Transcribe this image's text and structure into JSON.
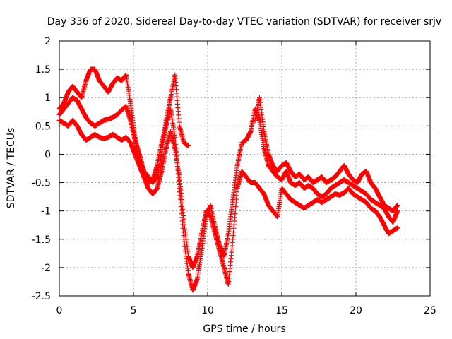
{
  "chart_data": {
    "type": "scatter",
    "title": "Day 336 of 2020, Sidereal Day-to-day VTEC variation (SDTVAR) for receiver srjv",
    "xlabel": "GPS time / hours",
    "ylabel": "SDTVAR / TECUs",
    "xlim": [
      0,
      25
    ],
    "ylim": [
      -2.5,
      2
    ],
    "xticks": [
      0,
      5,
      10,
      15,
      20,
      25
    ],
    "yticks": [
      -2.5,
      -2,
      -1.5,
      -1,
      -0.5,
      0,
      0.5,
      1,
      1.5,
      2
    ],
    "xtick_labels": [
      "0",
      "5",
      "10",
      "15",
      "20",
      "25"
    ],
    "ytick_labels": [
      "-2.5",
      "-2",
      "-1.5",
      "-1",
      "-0.5",
      "0",
      "0.5",
      "1",
      "1.5",
      "2"
    ],
    "grid": true,
    "marker": "plus",
    "color": "#ff0000",
    "series": [
      {
        "x": [
          0.0,
          0.3,
          0.6,
          0.9,
          1.2,
          1.5,
          1.8,
          2.1,
          2.4,
          2.7,
          3.0,
          3.3,
          3.6,
          3.9,
          4.2,
          4.5,
          4.8,
          5.1,
          5.4,
          5.7,
          6.0,
          6.3,
          6.6,
          6.9,
          7.2,
          7.5,
          7.8,
          8.1,
          8.4,
          8.7,
          9.0,
          9.3,
          9.6,
          9.9,
          10.2,
          10.5,
          10.8,
          11.1,
          11.4,
          11.7,
          12.0,
          12.3,
          12.6,
          12.9,
          13.2,
          13.5,
          13.8,
          14.1,
          14.4,
          14.7,
          15.0,
          15.3,
          15.6,
          15.9,
          16.2,
          16.5,
          16.8,
          17.1,
          17.4,
          17.7,
          18.0,
          18.3,
          18.6,
          18.9,
          19.2,
          19.5,
          19.8,
          20.1,
          20.4,
          20.7,
          21.0,
          21.3,
          21.6,
          21.9,
          22.2,
          22.5,
          22.8
        ],
        "y": [
          0.7,
          0.8,
          0.9,
          1.0,
          0.95,
          0.8,
          0.65,
          0.55,
          0.5,
          0.55,
          0.6,
          0.62,
          0.65,
          0.7,
          0.78,
          0.85,
          0.6,
          0.25,
          0.0,
          -0.3,
          -0.5,
          -0.45,
          -0.2,
          0.2,
          0.5,
          0.8,
          0.3,
          -0.6,
          -1.5,
          -2.1,
          -2.4,
          -2.2,
          -1.7,
          -1.1,
          -0.9,
          -1.3,
          -1.6,
          -1.8,
          -1.4,
          -0.8,
          -0.2,
          0.2,
          0.25,
          0.4,
          0.8,
          0.6,
          0.1,
          -0.2,
          -0.3,
          -0.4,
          -0.45,
          -0.3,
          -0.5,
          -0.55,
          -0.5,
          -0.6,
          -0.55,
          -0.6,
          -0.7,
          -0.75,
          -0.7,
          -0.6,
          -0.55,
          -0.5,
          -0.45,
          -0.5,
          -0.55,
          -0.6,
          -0.65,
          -0.7,
          -0.8,
          -0.85,
          -0.9,
          -0.95,
          -1.1,
          -1.2,
          -1.0
        ]
      },
      {
        "x": [
          0.0,
          0.3,
          0.6,
          0.9,
          1.2,
          1.5,
          1.8,
          2.1,
          2.4,
          2.7,
          3.0,
          3.3,
          3.6,
          3.9,
          4.2,
          4.5,
          4.8,
          5.1,
          5.4,
          5.7,
          6.0,
          6.3,
          6.6,
          6.9,
          7.2,
          7.5,
          7.8,
          8.1,
          8.4,
          8.7,
          9.0,
          9.3,
          9.6,
          9.9,
          10.2,
          10.5,
          10.8,
          11.1,
          11.4,
          11.7,
          12.0,
          12.3,
          12.6,
          12.9,
          13.2,
          13.5,
          13.8,
          14.1,
          14.4,
          14.7,
          15.0,
          15.3,
          15.6,
          15.9,
          16.2,
          16.5,
          16.8,
          17.1,
          17.4,
          17.7,
          18.0,
          18.3,
          18.6,
          18.9,
          19.2,
          19.5,
          19.8,
          20.1,
          20.4,
          20.7,
          21.0,
          21.3,
          21.6,
          21.9,
          22.2,
          22.5,
          22.8
        ],
        "y": [
          0.6,
          0.55,
          0.5,
          0.6,
          0.5,
          0.35,
          0.25,
          0.3,
          0.35,
          0.3,
          0.28,
          0.3,
          0.35,
          0.3,
          0.25,
          0.3,
          0.2,
          0.0,
          -0.2,
          -0.4,
          -0.6,
          -0.7,
          -0.6,
          -0.3,
          0.1,
          0.4,
          0.1,
          -0.4,
          -1.2,
          -1.8,
          -2.0,
          -1.8,
          -1.4,
          -1.0,
          -1.1,
          -1.4,
          -1.7,
          -2.0,
          -2.3,
          -1.5,
          -0.6,
          -0.3,
          -0.4,
          -0.5,
          -0.5,
          -0.6,
          -0.7,
          -0.9,
          -1.0,
          -1.1,
          -0.6,
          -0.7,
          -0.8,
          -0.85,
          -0.9,
          -0.95,
          -0.9,
          -0.85,
          -0.8,
          -0.85,
          -0.8,
          -0.75,
          -0.7,
          -0.72,
          -0.68,
          -0.6,
          -0.7,
          -0.75,
          -0.8,
          -0.85,
          -0.95,
          -1.0,
          -1.1,
          -1.25,
          -1.4,
          -1.35,
          -1.3
        ]
      },
      {
        "x": [
          0.0,
          0.3,
          0.6,
          0.9,
          1.2,
          1.5,
          1.8,
          2.1,
          2.4,
          2.7,
          3.0,
          3.3,
          3.6,
          3.9,
          4.2,
          4.5,
          4.8,
          5.1,
          5.4,
          5.7,
          6.0,
          6.3,
          6.6,
          6.9,
          7.2,
          7.5,
          7.8,
          8.1,
          8.4,
          8.7,
          13.2,
          13.5,
          13.8,
          14.1,
          14.4,
          14.7,
          15.0,
          15.3,
          15.6,
          15.9,
          16.2,
          16.5,
          16.8,
          17.1,
          17.4,
          17.7,
          18.0,
          18.3,
          18.6,
          18.9,
          19.2,
          19.5,
          19.8,
          20.1,
          20.4,
          20.7,
          21.0,
          21.3,
          21.6,
          21.9,
          22.2,
          22.5,
          22.8
        ],
        "y": [
          0.8,
          0.9,
          1.1,
          1.2,
          1.1,
          1.0,
          1.3,
          1.5,
          1.5,
          1.3,
          1.2,
          1.1,
          1.25,
          1.35,
          1.3,
          1.4,
          0.9,
          0.3,
          -0.1,
          -0.3,
          -0.4,
          -0.5,
          -0.4,
          0.0,
          0.6,
          1.0,
          1.4,
          0.5,
          0.2,
          0.15,
          0.6,
          1.0,
          0.4,
          0.0,
          -0.2,
          -0.3,
          -0.2,
          -0.15,
          -0.3,
          -0.4,
          -0.35,
          -0.45,
          -0.4,
          -0.5,
          -0.45,
          -0.4,
          -0.5,
          -0.45,
          -0.4,
          -0.3,
          -0.2,
          -0.35,
          -0.45,
          -0.5,
          -0.35,
          -0.3,
          -0.5,
          -0.6,
          -0.75,
          -0.9,
          -0.95,
          -1.0,
          -0.9
        ]
      }
    ]
  }
}
